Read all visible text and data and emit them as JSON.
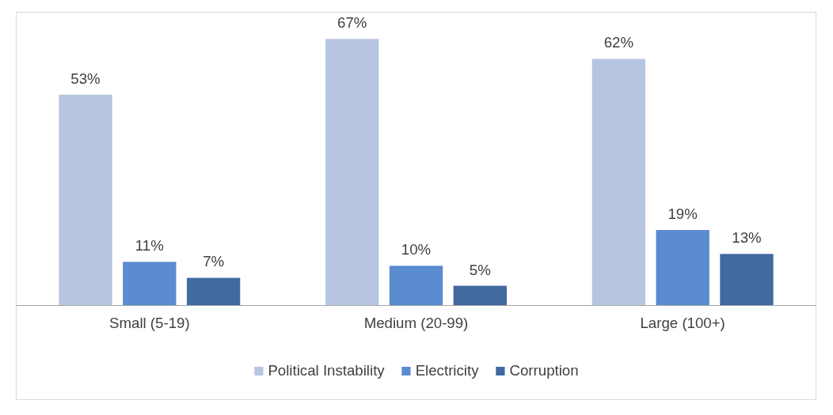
{
  "chart_data": {
    "type": "bar",
    "categories": [
      "Small (5-19)",
      "Medium (20-99)",
      "Large (100+)"
    ],
    "series": [
      {
        "name": "Political Instability",
        "color": "#b7c5e1",
        "values": [
          53,
          67,
          62
        ],
        "value_labels": [
          "53%",
          "67%",
          "62%"
        ]
      },
      {
        "name": "Electricity",
        "color": "#5a8ccf",
        "values": [
          11,
          10,
          19
        ],
        "value_labels": [
          "11%",
          "10%",
          "19%"
        ]
      },
      {
        "name": "Corruption",
        "color": "#416a9e",
        "values": [
          7,
          5,
          13
        ],
        "value_labels": [
          "7%",
          "5%",
          "13%"
        ]
      }
    ],
    "grid": false,
    "legend": "bottom",
    "tick_labels": "x"
  }
}
